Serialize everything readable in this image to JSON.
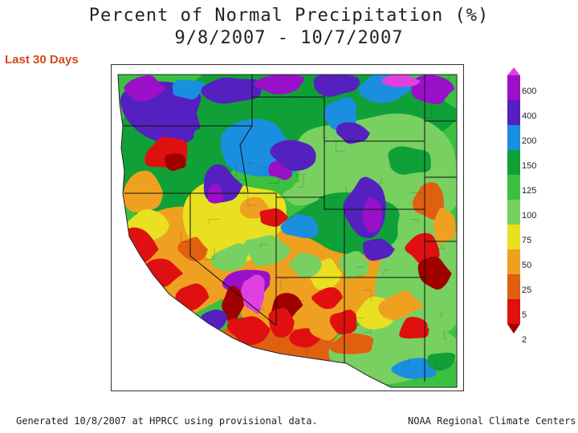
{
  "title_line1": "Percent of Normal Precipitation (%)",
  "title_line2": "9/8/2007 - 10/7/2007",
  "period_label": "Last 30 Days",
  "legend": {
    "labels": [
      "600",
      "400",
      "200",
      "150",
      "125",
      "100",
      "75",
      "50",
      "25",
      "5",
      "2"
    ],
    "colors": [
      "#e040e0",
      "#9a10c8",
      "#5520c0",
      "#1a8fe0",
      "#10a038",
      "#3cc040",
      "#78d060",
      "#e8e020",
      "#f0a020",
      "#e06010",
      "#e01010",
      "#a00000"
    ]
  },
  "footer_left": "Generated 10/8/2007 at HPRCC using provisional data.",
  "footer_right": "NOAA Regional Climate Centers"
}
